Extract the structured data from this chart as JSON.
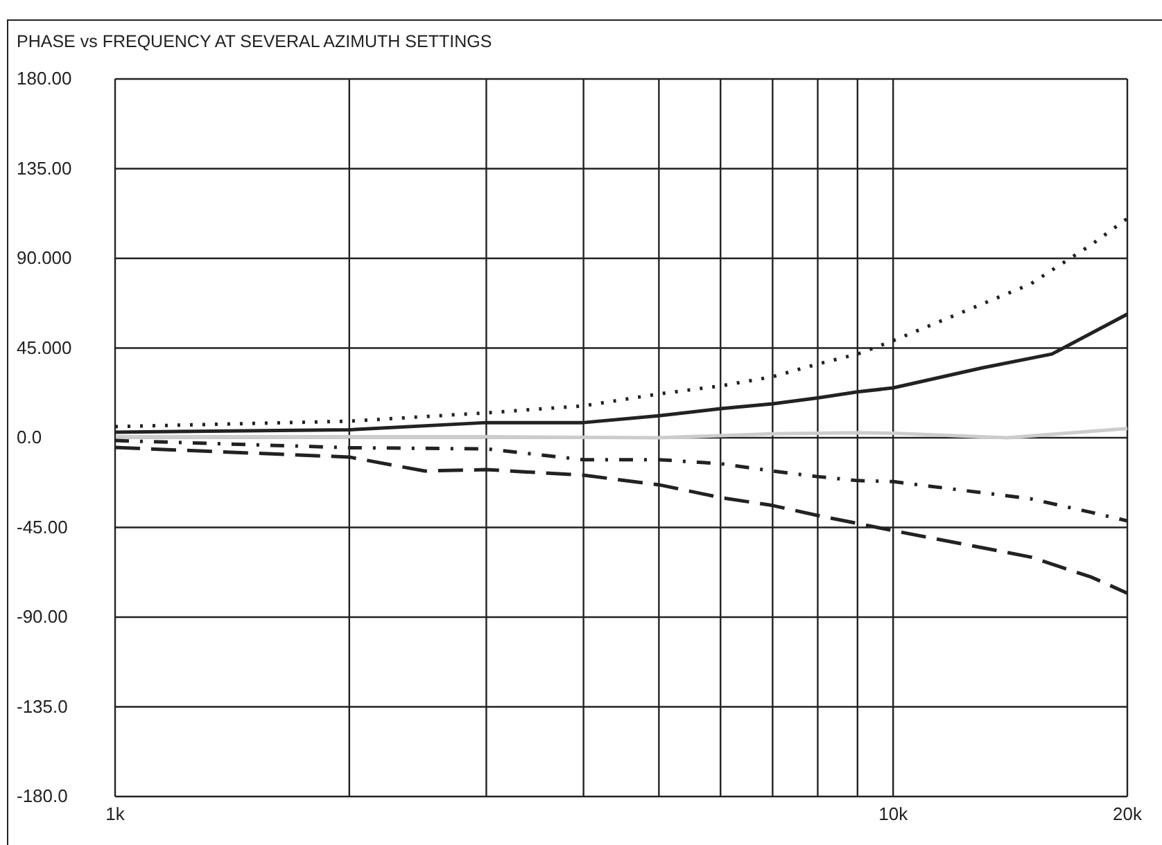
{
  "chart_data": {
    "type": "line",
    "title": "PHASE vs FREQUENCY AT SEVERAL AZIMUTH SETTINGS",
    "log": "x",
    "grid": true,
    "legend": false,
    "marker": "none",
    "xlim": [
      1000,
      20000
    ],
    "xticks": [
      {
        "value": 1000,
        "label": "1k"
      },
      {
        "value": 2000,
        "label": null
      },
      {
        "value": 3000,
        "label": null
      },
      {
        "value": 4000,
        "label": null
      },
      {
        "value": 5000,
        "label": null
      },
      {
        "value": 6000,
        "label": null
      },
      {
        "value": 7000,
        "label": null
      },
      {
        "value": 8000,
        "label": null
      },
      {
        "value": 9000,
        "label": null
      },
      {
        "value": 10000,
        "label": "10k"
      },
      {
        "value": 20000,
        "label": "20k"
      }
    ],
    "ylim": [
      -180,
      180
    ],
    "yticks": [
      {
        "value": 180,
        "label": "180.00"
      },
      {
        "value": 135,
        "label": "135.00"
      },
      {
        "value": 90,
        "label": "90.000"
      },
      {
        "value": 45,
        "label": "45.000"
      },
      {
        "value": 0,
        "label": "0.0"
      },
      {
        "value": -45,
        "label": "-45.00"
      },
      {
        "value": -90,
        "label": "-90.00"
      },
      {
        "value": -135,
        "label": "-135.0"
      },
      {
        "value": -180,
        "label": "-180.0"
      }
    ],
    "series": [
      {
        "color": "#222222",
        "line_style": "solid",
        "x": [
          1000,
          2000,
          3000,
          4000,
          5000,
          6000,
          7000,
          8000,
          9000,
          10000,
          13000,
          16000,
          20000
        ],
        "values": [
          2.8,
          4,
          7.6,
          7.6,
          11,
          14.6,
          17,
          20,
          23,
          25,
          35,
          42,
          62
        ]
      },
      {
        "color": "#222222",
        "line_style": "dotted",
        "x": [
          1000,
          2000,
          3000,
          4000,
          5000,
          6000,
          7000,
          8000,
          9000,
          10000,
          15000,
          18000,
          20000
        ],
        "values": [
          5.6,
          8.3,
          12.5,
          16,
          22,
          26,
          30.6,
          37,
          42,
          48.7,
          77,
          97,
          110
        ]
      },
      {
        "color": "#cccccc",
        "line_style": "solid",
        "x": [
          1000,
          3000,
          5000,
          7000,
          9000,
          10000,
          14000,
          20000
        ],
        "values": [
          0.5,
          0.5,
          0,
          2,
          2.5,
          2.3,
          0,
          4.6
        ]
      },
      {
        "color": "#222222",
        "line_style": "dashdot",
        "x": [
          1000,
          2000,
          3000,
          4000,
          5000,
          6000,
          7000,
          8000,
          9000,
          10000,
          15000,
          18000,
          20000
        ],
        "values": [
          -1.4,
          -5,
          -5.6,
          -11,
          -11,
          -13,
          -16.7,
          -19.5,
          -21.5,
          -22,
          -30.6,
          -37.5,
          -41.7
        ]
      },
      {
        "color": "#222222",
        "line_style": "dashed",
        "x": [
          1000,
          2000,
          2500,
          3000,
          4000,
          5000,
          6000,
          7000,
          8000,
          9000,
          10000,
          15000,
          18000,
          20000
        ],
        "values": [
          -4.9,
          -9.7,
          -16.7,
          -16,
          -18.8,
          -23.6,
          -30,
          -34,
          -39,
          -43,
          -46.6,
          -59.8,
          -70,
          -78
        ]
      }
    ]
  }
}
